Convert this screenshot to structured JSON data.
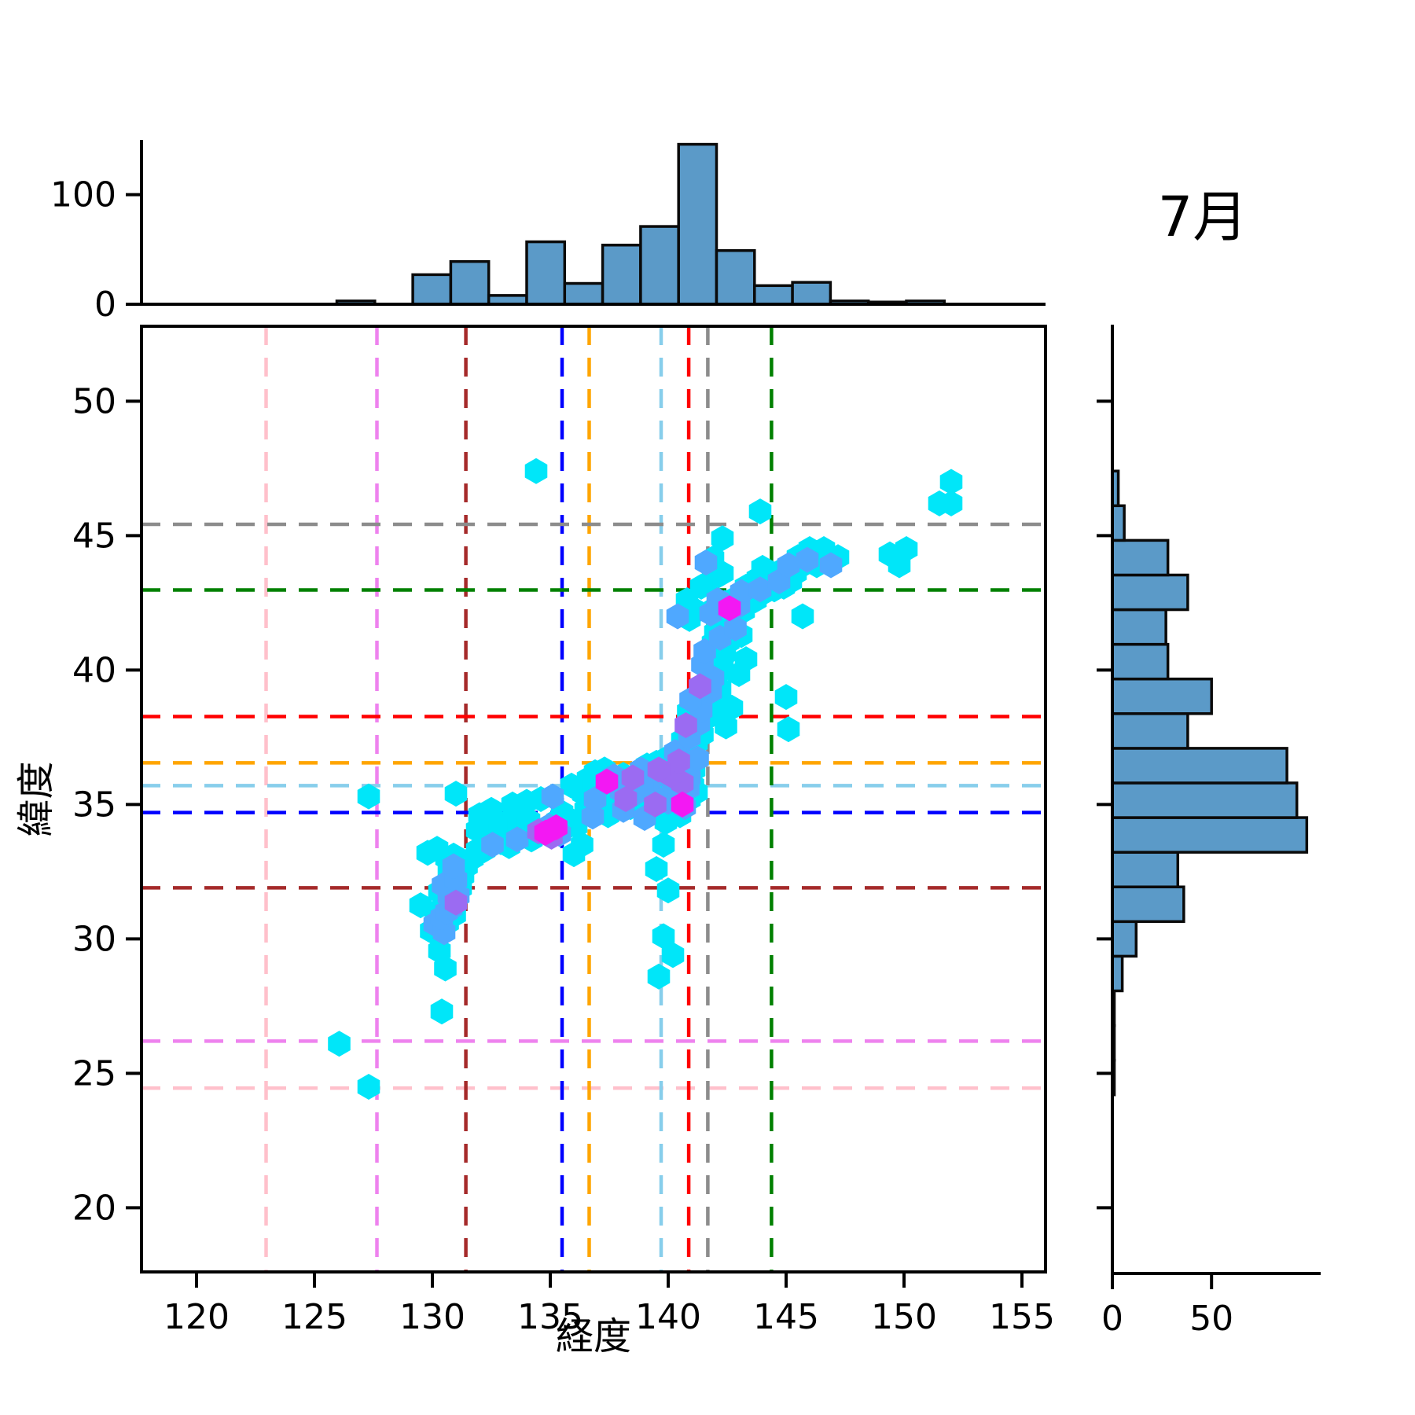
{
  "title": "7月",
  "chart_data": {
    "type": "scatter",
    "xlabel": "経度",
    "ylabel": "緯度",
    "xlim": [
      117.7,
      156.0
    ],
    "ylim": [
      17.6,
      52.8
    ],
    "xticks": [
      120,
      125,
      130,
      135,
      140,
      145,
      150,
      155
    ],
    "yticks": [
      20,
      25,
      30,
      35,
      40,
      45,
      50
    ],
    "legend": "none",
    "grid": false,
    "marker": "hexagon",
    "point_color_scale": [
      "#00E6F9",
      "#4FA8FF",
      "#9B6BF2",
      "#F318F3"
    ],
    "top_histogram": {
      "axis_ticks": [
        0,
        100
      ],
      "ylim": [
        0,
        150
      ],
      "bin_start": 125.95,
      "bin_width": 1.61,
      "counts": [
        3,
        0,
        27,
        39,
        8,
        57,
        19,
        54,
        71,
        146,
        49,
        17,
        20,
        3,
        2,
        3
      ],
      "bar_color": "#5B9AC8",
      "bar_edge_color": "#0A0A0A"
    },
    "right_histogram": {
      "axis_ticks": [
        0,
        50
      ],
      "xlim": [
        0,
        105
      ],
      "bin_start": 24.2,
      "bin_width": 1.289,
      "counts": [
        1,
        1,
        1,
        5,
        12,
        36,
        33,
        98,
        93,
        88,
        38,
        50,
        28,
        27,
        38,
        28,
        6,
        3
      ],
      "bar_color": "#5B9AC8",
      "bar_edge_color": "#0A0A0A"
    },
    "reference_lines": [
      {
        "color": "#FFC0CB",
        "lon": 122.95,
        "lat": 24.45
      },
      {
        "color": "#EE82EE",
        "lon": 127.65,
        "lat": 26.2
      },
      {
        "color": "#A52A2A",
        "lon": 131.42,
        "lat": 31.9
      },
      {
        "color": "#0000FF",
        "lon": 135.5,
        "lat": 34.7
      },
      {
        "color": "#FFA500",
        "lon": 136.65,
        "lat": 36.55
      },
      {
        "color": "#87CEEB",
        "lon": 139.7,
        "lat": 35.7
      },
      {
        "color": "#FF0000",
        "lon": 140.87,
        "lat": 38.27
      },
      {
        "color": "#8C8C8C",
        "lon": 141.68,
        "lat": 45.42
      },
      {
        "color": "#008000",
        "lon": 144.38,
        "lat": 42.98
      }
    ],
    "points": [
      [
        126.05,
        26.1,
        0
      ],
      [
        127.3,
        24.5,
        0
      ],
      [
        127.3,
        35.3,
        0
      ],
      [
        130.4,
        27.3,
        0
      ],
      [
        130.55,
        28.9,
        0
      ],
      [
        130.3,
        29.55,
        0
      ],
      [
        134.4,
        47.4,
        0
      ],
      [
        129.5,
        31.25,
        0
      ],
      [
        129.95,
        30.3,
        0
      ],
      [
        130.1,
        30.55,
        1
      ],
      [
        130.3,
        30.35,
        0
      ],
      [
        130.5,
        30.25,
        1
      ],
      [
        130.65,
        30.6,
        0
      ],
      [
        130.4,
        30.8,
        1
      ],
      [
        130.15,
        31.0,
        0
      ],
      [
        130.6,
        31.0,
        1
      ],
      [
        130.8,
        31.15,
        1
      ],
      [
        130.95,
        30.9,
        0
      ],
      [
        131.0,
        31.35,
        2
      ],
      [
        130.5,
        31.5,
        0
      ],
      [
        130.7,
        31.6,
        1
      ],
      [
        130.3,
        31.75,
        0
      ],
      [
        130.9,
        31.8,
        0
      ],
      [
        131.1,
        31.6,
        1
      ],
      [
        131.2,
        31.9,
        0
      ],
      [
        130.45,
        32.0,
        1
      ],
      [
        130.75,
        32.1,
        0
      ],
      [
        131.0,
        32.2,
        1
      ],
      [
        131.3,
        32.35,
        0
      ],
      [
        130.7,
        32.5,
        0
      ],
      [
        130.9,
        32.7,
        1
      ],
      [
        131.1,
        32.85,
        0
      ],
      [
        130.6,
        33.0,
        0
      ],
      [
        130.9,
        33.1,
        0
      ],
      [
        131.45,
        32.7,
        0
      ],
      [
        131.7,
        33.0,
        0
      ],
      [
        129.8,
        33.2,
        0
      ],
      [
        130.2,
        33.35,
        0
      ],
      [
        131.9,
        33.3,
        0
      ],
      [
        132.2,
        33.3,
        0
      ],
      [
        132.55,
        33.5,
        1
      ],
      [
        132.9,
        33.6,
        0
      ],
      [
        133.25,
        33.45,
        0
      ],
      [
        133.6,
        33.7,
        1
      ],
      [
        133.9,
        33.85,
        0
      ],
      [
        134.2,
        33.7,
        0
      ],
      [
        134.5,
        34.0,
        2
      ],
      [
        134.8,
        33.95,
        3
      ],
      [
        134.95,
        34.2,
        1
      ],
      [
        135.25,
        34.15,
        3
      ],
      [
        135.05,
        33.8,
        2
      ],
      [
        135.4,
        33.9,
        1
      ],
      [
        135.6,
        34.1,
        0
      ],
      [
        135.3,
        34.4,
        0
      ],
      [
        134.1,
        34.4,
        0
      ],
      [
        133.7,
        34.5,
        0
      ],
      [
        133.1,
        34.3,
        0
      ],
      [
        132.7,
        34.2,
        0
      ],
      [
        132.3,
        34.1,
        0
      ],
      [
        131.9,
        34.05,
        0
      ],
      [
        132.0,
        34.6,
        0
      ],
      [
        132.5,
        34.8,
        0
      ],
      [
        133.4,
        35.0,
        0
      ],
      [
        134.0,
        35.1,
        0
      ],
      [
        134.6,
        35.2,
        0
      ],
      [
        135.1,
        35.3,
        1
      ],
      [
        135.5,
        34.7,
        0
      ],
      [
        135.8,
        34.45,
        0
      ],
      [
        136.1,
        34.2,
        0
      ],
      [
        136.35,
        33.5,
        0
      ],
      [
        136.0,
        33.15,
        0
      ],
      [
        131.0,
        35.4,
        0
      ],
      [
        136.5,
        34.8,
        0
      ],
      [
        136.8,
        34.55,
        1
      ],
      [
        137.1,
        34.7,
        0
      ],
      [
        137.45,
        34.6,
        0
      ],
      [
        136.6,
        35.1,
        0
      ],
      [
        136.9,
        35.2,
        1
      ],
      [
        137.2,
        35.0,
        0
      ],
      [
        137.5,
        35.2,
        0
      ],
      [
        137.8,
        34.9,
        0
      ],
      [
        138.1,
        34.8,
        1
      ],
      [
        138.4,
        34.9,
        0
      ],
      [
        138.2,
        35.2,
        2
      ],
      [
        138.5,
        35.35,
        1
      ],
      [
        138.8,
        35.0,
        0
      ],
      [
        139.1,
        34.8,
        0
      ],
      [
        139.0,
        34.5,
        1
      ],
      [
        139.35,
        34.7,
        0
      ],
      [
        139.45,
        35.0,
        2
      ],
      [
        139.6,
        35.2,
        1
      ],
      [
        139.8,
        35.4,
        0
      ],
      [
        140.0,
        35.1,
        1
      ],
      [
        140.2,
        35.3,
        0
      ],
      [
        140.45,
        35.5,
        1
      ],
      [
        140.6,
        35.0,
        3
      ],
      [
        140.3,
        34.9,
        0
      ],
      [
        140.1,
        34.65,
        0
      ],
      [
        139.9,
        34.35,
        0
      ],
      [
        140.5,
        34.6,
        0
      ],
      [
        140.7,
        34.9,
        1
      ],
      [
        140.9,
        35.2,
        0
      ],
      [
        140.85,
        35.6,
        1
      ],
      [
        140.6,
        35.8,
        2
      ],
      [
        140.4,
        36.0,
        1
      ],
      [
        140.2,
        35.8,
        1
      ],
      [
        140.0,
        35.65,
        0
      ],
      [
        139.75,
        35.7,
        0
      ],
      [
        140.1,
        36.1,
        2
      ],
      [
        140.3,
        36.3,
        1
      ],
      [
        140.5,
        36.45,
        0
      ],
      [
        140.7,
        36.2,
        0
      ],
      [
        140.9,
        36.0,
        1
      ],
      [
        141.05,
        35.7,
        0
      ],
      [
        141.2,
        35.45,
        0
      ],
      [
        141.1,
        36.3,
        0
      ],
      [
        140.8,
        36.6,
        1
      ],
      [
        140.6,
        36.85,
        0
      ],
      [
        140.45,
        36.6,
        2
      ],
      [
        140.2,
        36.5,
        0
      ],
      [
        140.0,
        36.35,
        0
      ],
      [
        139.7,
        36.2,
        0
      ],
      [
        139.4,
        36.0,
        1
      ],
      [
        139.2,
        35.8,
        0
      ],
      [
        138.9,
        35.6,
        1
      ],
      [
        138.6,
        35.7,
        0
      ],
      [
        138.3,
        35.6,
        0
      ],
      [
        138.0,
        35.5,
        1
      ],
      [
        137.7,
        35.4,
        0
      ],
      [
        137.4,
        35.6,
        0
      ],
      [
        137.1,
        35.85,
        0
      ],
      [
        136.8,
        35.6,
        0
      ],
      [
        136.6,
        35.95,
        0
      ],
      [
        136.9,
        36.2,
        0
      ],
      [
        137.3,
        36.3,
        0
      ],
      [
        137.7,
        36.05,
        1
      ],
      [
        138.1,
        36.1,
        0
      ],
      [
        138.5,
        36.0,
        2
      ],
      [
        138.85,
        36.3,
        1
      ],
      [
        139.1,
        36.45,
        0
      ],
      [
        139.5,
        36.55,
        0
      ],
      [
        139.9,
        36.7,
        0
      ],
      [
        140.3,
        36.95,
        1
      ],
      [
        140.7,
        37.1,
        0
      ],
      [
        141.0,
        36.9,
        0
      ],
      [
        141.25,
        36.7,
        1
      ],
      [
        136.4,
        35.4,
        0
      ],
      [
        135.9,
        35.7,
        0
      ],
      [
        137.4,
        35.85,
        3
      ],
      [
        139.6,
        36.3,
        2
      ],
      [
        139.8,
        33.5,
        0
      ],
      [
        139.5,
        32.6,
        0
      ],
      [
        140.0,
        31.8,
        0
      ],
      [
        139.8,
        30.1,
        0
      ],
      [
        140.2,
        29.4,
        0
      ],
      [
        139.6,
        28.6,
        0
      ],
      [
        140.6,
        37.4,
        0
      ],
      [
        140.9,
        37.5,
        1
      ],
      [
        141.2,
        37.3,
        0
      ],
      [
        141.45,
        37.6,
        0
      ],
      [
        141.0,
        37.8,
        0
      ],
      [
        140.75,
        37.95,
        2
      ],
      [
        141.3,
        38.0,
        1
      ],
      [
        141.6,
        38.2,
        0
      ],
      [
        141.1,
        38.3,
        0
      ],
      [
        140.85,
        38.45,
        0
      ],
      [
        141.4,
        38.5,
        1
      ],
      [
        141.7,
        38.7,
        0
      ],
      [
        141.95,
        38.4,
        0
      ],
      [
        141.2,
        38.8,
        0
      ],
      [
        140.95,
        38.9,
        1
      ],
      [
        141.5,
        39.0,
        0
      ],
      [
        141.8,
        39.2,
        1
      ],
      [
        142.05,
        38.9,
        0
      ],
      [
        142.2,
        39.3,
        0
      ],
      [
        141.6,
        39.5,
        0
      ],
      [
        141.35,
        39.4,
        2
      ],
      [
        141.9,
        39.7,
        1
      ],
      [
        142.1,
        39.9,
        0
      ],
      [
        141.7,
        40.0,
        0
      ],
      [
        141.45,
        40.2,
        1
      ],
      [
        142.0,
        40.3,
        0
      ],
      [
        142.3,
        40.1,
        0
      ],
      [
        141.8,
        40.5,
        0
      ],
      [
        141.55,
        40.7,
        1
      ],
      [
        142.1,
        40.8,
        0
      ],
      [
        142.4,
        40.6,
        0
      ],
      [
        141.9,
        41.0,
        0
      ],
      [
        142.2,
        41.2,
        1
      ],
      [
        142.55,
        41.05,
        0
      ],
      [
        142.0,
        41.4,
        0
      ],
      [
        143.0,
        39.85,
        0
      ],
      [
        143.3,
        40.4,
        0
      ],
      [
        142.7,
        38.6,
        0
      ],
      [
        142.45,
        37.9,
        0
      ],
      [
        143.1,
        41.3,
        0
      ],
      [
        142.85,
        41.55,
        1
      ],
      [
        145.0,
        39.0,
        0
      ],
      [
        145.1,
        37.8,
        0
      ],
      [
        141.8,
        42.1,
        1
      ],
      [
        142.0,
        42.3,
        0
      ],
      [
        142.3,
        42.0,
        0
      ],
      [
        142.6,
        42.3,
        3
      ],
      [
        142.4,
        42.5,
        0
      ],
      [
        142.1,
        42.6,
        1
      ],
      [
        142.8,
        42.1,
        0
      ],
      [
        143.0,
        42.4,
        1
      ],
      [
        143.2,
        42.2,
        0
      ],
      [
        143.4,
        42.5,
        0
      ],
      [
        142.9,
        42.7,
        0
      ],
      [
        143.1,
        42.9,
        1
      ],
      [
        143.5,
        42.8,
        0
      ],
      [
        143.7,
        42.6,
        0
      ],
      [
        143.3,
        43.1,
        0
      ],
      [
        143.9,
        43.0,
        1
      ],
      [
        144.1,
        42.9,
        0
      ],
      [
        144.3,
        43.2,
        0
      ],
      [
        143.8,
        43.4,
        0
      ],
      [
        144.5,
        43.0,
        0
      ],
      [
        144.7,
        43.3,
        1
      ],
      [
        144.9,
        43.1,
        0
      ],
      [
        145.2,
        43.3,
        0
      ],
      [
        144.4,
        43.6,
        0
      ],
      [
        144.0,
        43.8,
        0
      ],
      [
        144.8,
        43.7,
        0
      ],
      [
        145.1,
        43.9,
        1
      ],
      [
        145.4,
        43.6,
        0
      ],
      [
        145.7,
        43.9,
        0
      ],
      [
        145.5,
        44.2,
        0
      ],
      [
        145.9,
        44.1,
        1
      ],
      [
        146.2,
        44.3,
        0
      ],
      [
        146.5,
        44.2,
        0
      ],
      [
        146.0,
        44.5,
        0
      ],
      [
        145.7,
        42.0,
        0
      ],
      [
        146.3,
        43.9,
        0
      ],
      [
        146.6,
        44.5,
        0
      ],
      [
        147.2,
        44.2,
        0
      ],
      [
        146.9,
        43.9,
        1
      ],
      [
        141.6,
        44.0,
        1
      ],
      [
        141.9,
        44.15,
        0
      ],
      [
        141.9,
        43.4,
        0
      ],
      [
        142.3,
        43.6,
        0
      ],
      [
        141.4,
        43.1,
        0
      ],
      [
        140.8,
        42.6,
        0
      ],
      [
        141.2,
        42.2,
        0
      ],
      [
        140.9,
        41.9,
        0
      ],
      [
        140.4,
        42.0,
        1
      ],
      [
        142.3,
        44.9,
        0
      ],
      [
        143.9,
        45.9,
        0
      ],
      [
        151.5,
        46.2,
        0
      ],
      [
        152.0,
        46.2,
        0
      ],
      [
        152.0,
        47.0,
        0
      ],
      [
        149.4,
        44.3,
        0
      ],
      [
        150.1,
        44.5,
        0
      ],
      [
        149.8,
        43.9,
        0
      ]
    ]
  }
}
